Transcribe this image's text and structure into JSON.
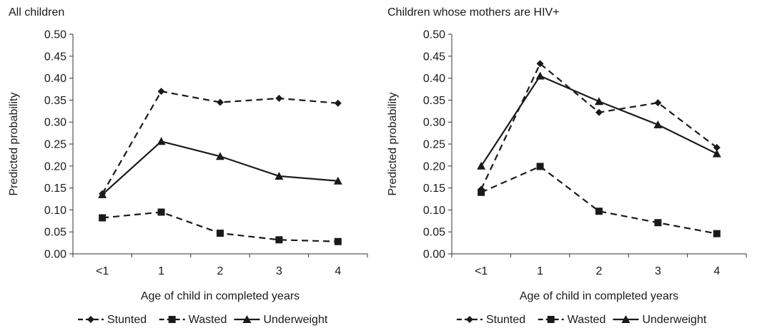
{
  "chart_data": [
    {
      "type": "line",
      "title": "All children",
      "xlabel": "Age of child in completed years",
      "ylabel": "Predicted probability",
      "categories": [
        "<1",
        "1",
        "2",
        "3",
        "4"
      ],
      "ylim": [
        0,
        0.5
      ],
      "yticks": [
        "0.00",
        "0.05",
        "0.10",
        "0.15",
        "0.20",
        "0.25",
        "0.30",
        "0.35",
        "0.40",
        "0.45",
        "0.50"
      ],
      "grid": false,
      "legend_position": "bottom",
      "series": [
        {
          "name": "Stunted",
          "values": [
            0.137,
            0.37,
            0.345,
            0.354,
            0.343
          ],
          "marker": "diamond",
          "dash": "dashed",
          "color": "#1a1a1a"
        },
        {
          "name": "Wasted",
          "values": [
            0.082,
            0.095,
            0.047,
            0.032,
            0.028
          ],
          "marker": "square",
          "dash": "dashed",
          "color": "#1a1a1a"
        },
        {
          "name": "Underweight",
          "values": [
            0.135,
            0.256,
            0.222,
            0.177,
            0.166
          ],
          "marker": "triangle",
          "dash": "solid",
          "color": "#1a1a1a"
        }
      ]
    },
    {
      "type": "line",
      "title": "Children whose mothers are HIV+",
      "xlabel": "Age of child in completed years",
      "ylabel": "Predicted probability",
      "categories": [
        "<1",
        "1",
        "2",
        "3",
        "4"
      ],
      "ylim": [
        0,
        0.5
      ],
      "yticks": [
        "0.00",
        "0.05",
        "0.10",
        "0.15",
        "0.20",
        "0.25",
        "0.30",
        "0.35",
        "0.40",
        "0.45",
        "0.50"
      ],
      "grid": false,
      "legend_position": "bottom",
      "series": [
        {
          "name": "Stunted",
          "values": [
            0.147,
            0.433,
            0.322,
            0.344,
            0.242
          ],
          "marker": "diamond",
          "dash": "dashed",
          "color": "#1a1a1a"
        },
        {
          "name": "Wasted",
          "values": [
            0.14,
            0.199,
            0.097,
            0.071,
            0.046
          ],
          "marker": "square",
          "dash": "dashed",
          "color": "#1a1a1a"
        },
        {
          "name": "Underweight",
          "values": [
            0.2,
            0.405,
            0.347,
            0.294,
            0.228
          ],
          "marker": "triangle",
          "dash": "solid",
          "color": "#1a1a1a"
        }
      ]
    }
  ]
}
